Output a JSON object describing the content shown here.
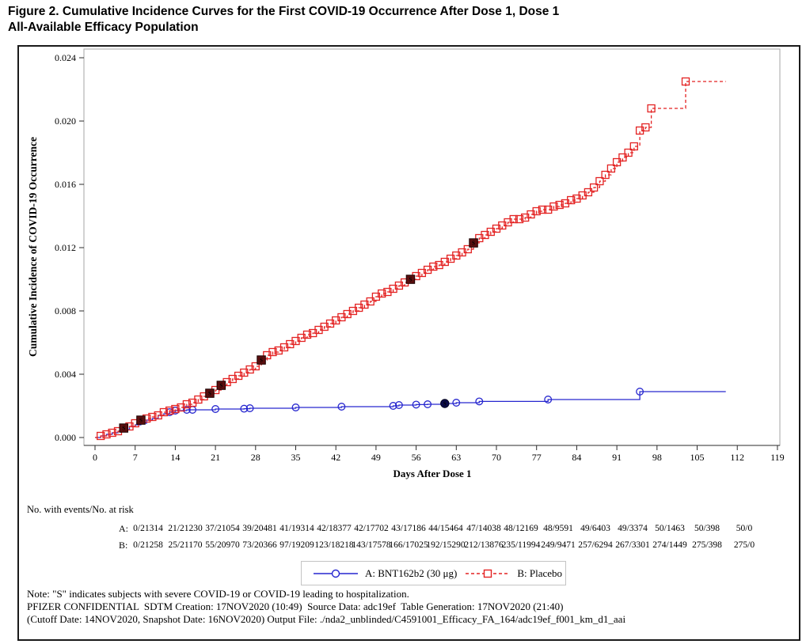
{
  "title": {
    "lines": [
      "Figure 2. Cumulative Incidence Curves for the First COVID-19 Occurrence After Dose 1, Dose 1",
      "All-Available Efficacy Population"
    ]
  },
  "chart_data": {
    "type": "line",
    "subtype": "step-cumulative-incidence",
    "xlabel": "Days After Dose 1",
    "ylabel": "Cumulative Incidence of COVID-19 Occurrence",
    "xlim": [
      0,
      119
    ],
    "ylim": [
      0,
      0.024
    ],
    "xticks": [
      0,
      7,
      14,
      21,
      28,
      35,
      42,
      49,
      56,
      63,
      70,
      77,
      84,
      91,
      98,
      105,
      112,
      119
    ],
    "yticks": [
      0,
      0.004,
      0.008,
      0.012,
      0.016,
      0.02,
      0.024
    ],
    "ytick_labels": [
      "0.000",
      "0.004",
      "0.008",
      "0.012",
      "0.016",
      "0.020",
      "0.024"
    ],
    "grid": false,
    "legend_position": "bottom-center",
    "series": [
      {
        "name": "A: BNT162b2 (30 μg)",
        "color": "#2727cf",
        "severe_color": "#0b0b4a",
        "line": "solid",
        "marker": "circle",
        "points": [
          [
            0,
            0
          ],
          [
            1,
            0.0001
          ],
          [
            2,
            0.0002
          ],
          [
            3,
            0.0003
          ],
          [
            4,
            0.0004
          ],
          [
            5,
            0.0005
          ],
          [
            6,
            0.0007
          ],
          [
            7,
            0.0008
          ],
          [
            8,
            0.0009
          ],
          [
            9,
            0.0011
          ],
          [
            10,
            0.0012
          ],
          [
            11,
            0.0014
          ],
          [
            12,
            0.0015
          ],
          [
            13,
            0.0016
          ],
          [
            14,
            0.0017
          ],
          [
            16,
            0.00175
          ],
          [
            21,
            0.0018
          ],
          [
            26,
            0.00182
          ],
          [
            27,
            0.00185
          ],
          [
            35,
            0.0019
          ],
          [
            43,
            0.00195
          ],
          [
            52,
            0.002
          ],
          [
            53,
            0.00205
          ],
          [
            56,
            0.00208
          ],
          [
            58,
            0.0021
          ],
          [
            61,
            0.00215
          ],
          [
            63,
            0.0022
          ],
          [
            67,
            0.00228
          ],
          [
            79,
            0.0024
          ],
          [
            95,
            0.0029
          ],
          [
            110,
            0.0029
          ]
        ],
        "marker_days": [
          13,
          14,
          16,
          17,
          21,
          26,
          27,
          35,
          43,
          52,
          53,
          56,
          58,
          63,
          67,
          79,
          95
        ],
        "severe_points": [
          [
            61,
            0.00215
          ]
        ]
      },
      {
        "name": "B: Placebo",
        "color": "#e32222",
        "severe_color": "#5a0e0e",
        "line": "dashed",
        "marker": "square",
        "points": [
          [
            0,
            0
          ],
          [
            1,
            0.0001
          ],
          [
            2,
            0.0002
          ],
          [
            3,
            0.0003
          ],
          [
            4,
            0.0004
          ],
          [
            5,
            0.0006
          ],
          [
            6,
            0.0007
          ],
          [
            7,
            0.0009
          ],
          [
            8,
            0.0011
          ],
          [
            9,
            0.0012
          ],
          [
            10,
            0.0013
          ],
          [
            11,
            0.0014
          ],
          [
            12,
            0.0016
          ],
          [
            13,
            0.0017
          ],
          [
            14,
            0.0018
          ],
          [
            15,
            0.0019
          ],
          [
            16,
            0.0021
          ],
          [
            17,
            0.0022
          ],
          [
            18,
            0.0024
          ],
          [
            19,
            0.0026
          ],
          [
            20,
            0.0028
          ],
          [
            21,
            0.003
          ],
          [
            22,
            0.0033
          ],
          [
            23,
            0.0035
          ],
          [
            24,
            0.0037
          ],
          [
            25,
            0.0039
          ],
          [
            26,
            0.0041
          ],
          [
            27,
            0.0043
          ],
          [
            28,
            0.0045
          ],
          [
            29,
            0.0049
          ],
          [
            30,
            0.0052
          ],
          [
            31,
            0.0054
          ],
          [
            32,
            0.0055
          ],
          [
            33,
            0.0057
          ],
          [
            34,
            0.0059
          ],
          [
            35,
            0.0061
          ],
          [
            36,
            0.0063
          ],
          [
            37,
            0.0065
          ],
          [
            38,
            0.0066
          ],
          [
            39,
            0.0068
          ],
          [
            40,
            0.007
          ],
          [
            41,
            0.0072
          ],
          [
            42,
            0.0074
          ],
          [
            43,
            0.0076
          ],
          [
            44,
            0.0078
          ],
          [
            45,
            0.008
          ],
          [
            46,
            0.0082
          ],
          [
            47,
            0.0084
          ],
          [
            48,
            0.0086
          ],
          [
            49,
            0.0089
          ],
          [
            50,
            0.0091
          ],
          [
            51,
            0.0092
          ],
          [
            52,
            0.0094
          ],
          [
            53,
            0.0096
          ],
          [
            54,
            0.0098
          ],
          [
            55,
            0.01
          ],
          [
            56,
            0.0102
          ],
          [
            57,
            0.0104
          ],
          [
            58,
            0.0106
          ],
          [
            59,
            0.0108
          ],
          [
            60,
            0.0109
          ],
          [
            61,
            0.0111
          ],
          [
            62,
            0.0113
          ],
          [
            63,
            0.0115
          ],
          [
            64,
            0.0117
          ],
          [
            65,
            0.0119
          ],
          [
            66,
            0.0123
          ],
          [
            67,
            0.0126
          ],
          [
            68,
            0.0128
          ],
          [
            69,
            0.013
          ],
          [
            70,
            0.0132
          ],
          [
            71,
            0.0134
          ],
          [
            72,
            0.0136
          ],
          [
            73,
            0.0138
          ],
          [
            74,
            0.0138
          ],
          [
            75,
            0.0139
          ],
          [
            76,
            0.0141
          ],
          [
            77,
            0.0143
          ],
          [
            78,
            0.0144
          ],
          [
            79,
            0.0144
          ],
          [
            80,
            0.0146
          ],
          [
            81,
            0.0147
          ],
          [
            82,
            0.0148
          ],
          [
            83,
            0.015
          ],
          [
            84,
            0.0151
          ],
          [
            85,
            0.0153
          ],
          [
            86,
            0.0155
          ],
          [
            87,
            0.0158
          ],
          [
            88,
            0.0162
          ],
          [
            89,
            0.0166
          ],
          [
            90,
            0.017
          ],
          [
            91,
            0.0174
          ],
          [
            92,
            0.0177
          ],
          [
            93,
            0.018
          ],
          [
            94,
            0.0184
          ],
          [
            95,
            0.0194
          ],
          [
            96,
            0.0196
          ],
          [
            97,
            0.0208
          ],
          [
            103,
            0.0225
          ],
          [
            110,
            0.0225
          ]
        ],
        "marker_days": "all",
        "severe_points": [
          [
            5,
            0.0006
          ],
          [
            8,
            0.0011
          ],
          [
            20,
            0.0028
          ],
          [
            22,
            0.0033
          ],
          [
            29,
            0.0049
          ],
          [
            55,
            0.01
          ],
          [
            66,
            0.0123
          ]
        ]
      }
    ]
  },
  "at_risk": {
    "caption": "No. with events/No. at risk",
    "rows": [
      {
        "label": "A:",
        "values": [
          "0/21314",
          "21/21230",
          "37/21054",
          "39/20481",
          "41/19314",
          "42/18377",
          "42/17702",
          "43/17186",
          "44/15464",
          "47/14038",
          "48/12169",
          "48/9591",
          "49/6403",
          "49/3374",
          "50/1463",
          "50/398",
          "50/0"
        ]
      },
      {
        "label": "B:",
        "values": [
          "0/21258",
          "25/21170",
          "55/20970",
          "73/20366",
          "97/19209",
          "123/18218",
          "143/17578",
          "166/17025",
          "192/15290",
          "212/13876",
          "235/11994",
          "249/9471",
          "257/6294",
          "267/3301",
          "274/1449",
          "275/398",
          "275/0"
        ]
      }
    ]
  },
  "legend": {
    "entries": [
      {
        "label": "A: BNT162b2 (30 μg)",
        "color": "#2727cf",
        "line": "solid",
        "marker": "circle"
      },
      {
        "label": "B: Placebo",
        "color": "#e32222",
        "line": "dashed",
        "marker": "square"
      }
    ]
  },
  "footnotes": [
    "Note: \"S\" indicates subjects with severe COVID-19 or COVID-19 leading to hospitalization.",
    "PFIZER CONFIDENTIAL  SDTM Creation: 17NOV2020 (10:49)  Source Data: adc19ef  Table Generation: 17NOV2020 (21:40)",
    "(Cutoff Date: 14NOV2020, Snapshot Date: 16NOV2020) Output File: ./nda2_unblinded/C4591001_Efficacy_FA_164/adc19ef_f001_km_d1_aai"
  ]
}
